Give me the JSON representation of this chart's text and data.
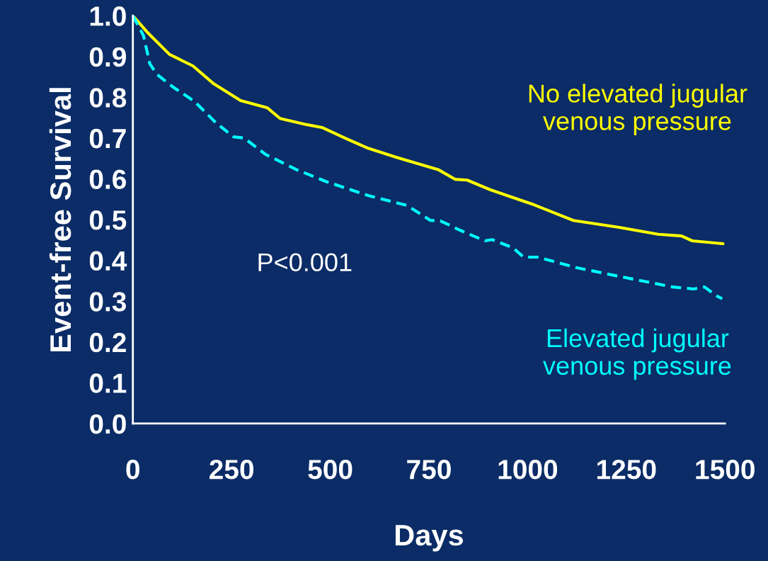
{
  "chart_data": {
    "type": "line",
    "xlabel": "Days",
    "ylabel": "Event-free Survival",
    "xlim": [
      0,
      1500
    ],
    "ylim": [
      0,
      1.0
    ],
    "xticks": [
      0,
      250,
      500,
      750,
      1000,
      1250,
      1500
    ],
    "yticks": [
      {
        "value": 0,
        "label": "0.0"
      },
      {
        "value": 0.1,
        "label": "0.1"
      },
      {
        "value": 0.2,
        "label": "0.2"
      },
      {
        "value": 0.3,
        "label": "0.3"
      },
      {
        "value": 0.4,
        "label": "0.4"
      },
      {
        "value": 0.5,
        "label": "0.5"
      },
      {
        "value": 0.6,
        "label": "0.6"
      },
      {
        "value": 0.7,
        "label": "0.7"
      },
      {
        "value": 0.8,
        "label": "0.8"
      },
      {
        "value": 0.9,
        "label": "0.9"
      },
      {
        "value": 1.0,
        "label": "1.0"
      }
    ],
    "grid": false,
    "legend": false,
    "marker": "none",
    "annotations": [
      "P<0.001"
    ],
    "series": [
      {
        "name": "No elevated jugular venous pressure",
        "color": "#ffff00",
        "line_style": "solid",
        "x": [
          0,
          36,
          93,
          152,
          205,
          273,
          341,
          373,
          440,
          479,
          542,
          596,
          667,
          775,
          816,
          847,
          906,
          1012,
          1116,
          1232,
          1331,
          1390,
          1417,
          1495
        ],
        "values": [
          1.0,
          0.96,
          0.905,
          0.877,
          0.833,
          0.792,
          0.774,
          0.748,
          0.733,
          0.726,
          0.698,
          0.675,
          0.653,
          0.622,
          0.599,
          0.597,
          0.573,
          0.538,
          0.498,
          0.481,
          0.464,
          0.46,
          0.448,
          0.441
        ]
      },
      {
        "name": "Elevated jugular venous pressure",
        "color": "#00ffff",
        "line_style": "dashed",
        "x": [
          0,
          27,
          43,
          61,
          102,
          156,
          183,
          210,
          255,
          282,
          336,
          416,
          488,
          596,
          694,
          754,
          779,
          829,
          892,
          910,
          963,
          990,
          1026,
          1125,
          1242,
          1367,
          1421,
          1448,
          1479,
          1493
        ],
        "values": [
          1.0,
          0.951,
          0.882,
          0.856,
          0.825,
          0.79,
          0.764,
          0.738,
          0.703,
          0.7,
          0.66,
          0.622,
          0.594,
          0.559,
          0.535,
          0.498,
          0.497,
          0.474,
          0.448,
          0.451,
          0.431,
          0.408,
          0.408,
          0.382,
          0.359,
          0.335,
          0.33,
          0.335,
          0.313,
          0.306
        ]
      }
    ]
  }
}
